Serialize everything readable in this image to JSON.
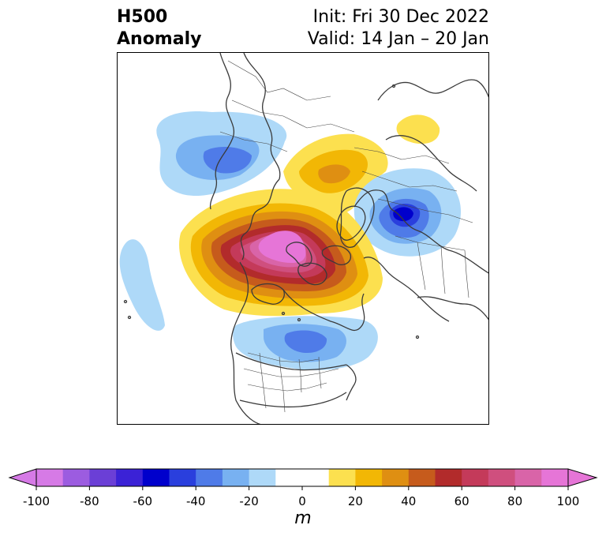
{
  "title": {
    "field": "H500",
    "subfield": "Anomaly",
    "init": "Init: Fri 30 Dec 2022",
    "valid": "Valid: 14 Jan – 20 Jan"
  },
  "colorbar": {
    "unit": "m",
    "range": [
      -100,
      100
    ],
    "step": 10,
    "tick_values": [
      -100,
      -80,
      -60,
      -40,
      -20,
      0,
      20,
      40,
      60,
      80,
      100
    ],
    "tick_labels": [
      "-100",
      "-80",
      "-60",
      "-40",
      "-20",
      "0",
      "20",
      "40",
      "60",
      "80",
      "100"
    ],
    "colors": [
      "#d67ae6",
      "#9c5ce0",
      "#6b3fd6",
      "#3b22d6",
      "#0000cc",
      "#2a3fdd",
      "#4f7be8",
      "#78b1f1",
      "#aed9f8",
      "#ffffff",
      "#ffffff",
      "#fce04f",
      "#f2b705",
      "#df8f12",
      "#c65b1c",
      "#b22b2b",
      "#c43a5a",
      "#cf4f7e",
      "#d964a8",
      "#e675d7"
    ],
    "extend": "both"
  },
  "map": {
    "projection": "north polar stereographic",
    "anomalies": [
      {
        "name": "ridge-north-america-arctic",
        "sign": "positive",
        "peak_m": 100
      },
      {
        "name": "ridge-northern-europe",
        "sign": "positive",
        "peak_m": 30
      },
      {
        "name": "ridge-east-siberia",
        "sign": "positive",
        "peak_m": 20
      },
      {
        "name": "trough-northwest-russia",
        "sign": "negative",
        "peak_m": -60
      },
      {
        "name": "trough-eastern-united-states",
        "sign": "negative",
        "peak_m": -50
      },
      {
        "name": "trough-north-pacific",
        "sign": "negative",
        "peak_m": -40
      },
      {
        "name": "trough-subtropical-atlantic",
        "sign": "negative",
        "peak_m": -20
      }
    ]
  }
}
